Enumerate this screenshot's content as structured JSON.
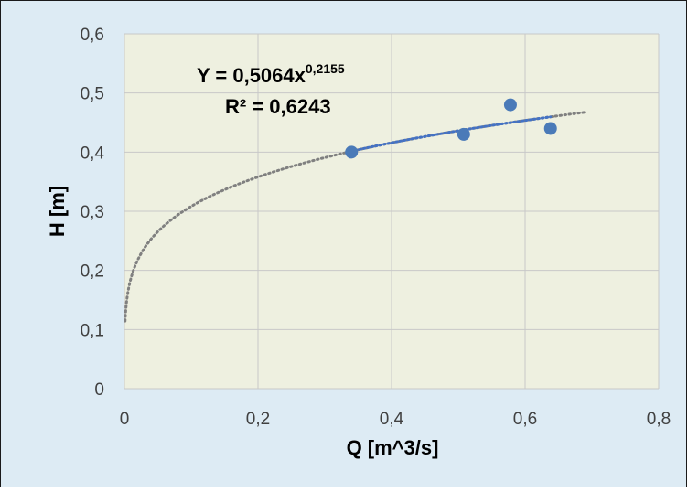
{
  "colors": {
    "outer_background": "#ddebf4",
    "plot_background": "#eef0e0",
    "border": "#1a1a1a",
    "gridline": "#c8c8c8",
    "marker": "#4a7ab8",
    "trendline_fit": "#808080",
    "trendline_data": "#4472c4",
    "text": "#404040",
    "title_text": "#000000"
  },
  "chart_data": {
    "type": "scatter",
    "xlabel": "Q [m^3/s]",
    "ylabel": "H [m]",
    "xlim": [
      0,
      0.8
    ],
    "ylim": [
      0,
      0.6
    ],
    "x_ticks": [
      "0",
      "0,2",
      "0,4",
      "0,6",
      "0,8"
    ],
    "y_ticks": [
      "0",
      "0,1",
      "0,2",
      "0,3",
      "0,4",
      "0,5",
      "0,6"
    ],
    "grid": true,
    "series": [
      {
        "x": [
          0.34,
          0.508,
          0.578,
          0.638
        ],
        "y": [
          0.4,
          0.43,
          0.48,
          0.44
        ]
      }
    ],
    "trendline": {
      "type": "power",
      "coefficient": 0.5064,
      "exponent": 0.2155,
      "x_range": [
        0.001,
        0.69
      ],
      "equation_main": "Y = 0,5064x",
      "equation_exponent": "0,2155",
      "r_squared": "R² = 0,6243"
    }
  }
}
